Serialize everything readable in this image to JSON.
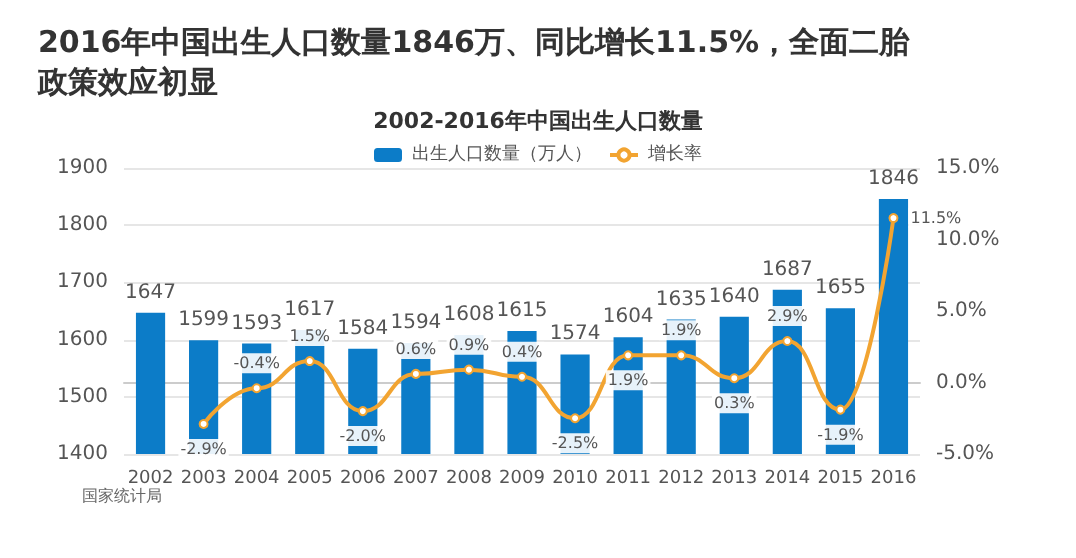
{
  "chart_data": {
    "type": "bar",
    "title": "2016年中国出生人口数量1846万、同比增长11.5%，全面二胎政策效应初显",
    "subtitle": "2002-2016年中国出生人口数量",
    "annotations": [
      "国家统计局"
    ],
    "categories": [
      "2002",
      "2003",
      "2004",
      "2005",
      "2006",
      "2007",
      "2008",
      "2009",
      "2010",
      "2011",
      "2012",
      "2013",
      "2014",
      "2015",
      "2016"
    ],
    "series": [
      {
        "name": "出生人口数量（万人）",
        "color": "#0c7cc8",
        "values": [
          1647,
          1599,
          1593,
          1617,
          1584,
          1594,
          1608,
          1615,
          1574,
          1604,
          1635,
          1640,
          1687,
          1655,
          1846
        ]
      },
      {
        "name": "增长率",
        "type": "line",
        "axis": "y2",
        "color": "#f2a431",
        "values": [
          null,
          -2.9,
          -0.4,
          1.5,
          -2.0,
          0.6,
          0.9,
          0.4,
          -2.5,
          1.9,
          1.9,
          0.3,
          2.9,
          -1.9,
          11.5
        ],
        "value_labels": [
          null,
          "-2.9%",
          "-0.4%",
          "1.5%",
          "-2.0%",
          "0.6%",
          "0.9%",
          "0.4%",
          "-2.5%",
          "1.9%",
          "1.9%",
          "0.3%",
          "2.9%",
          "-1.9%",
          "11.5%"
        ]
      }
    ],
    "data_labels": true,
    "ylim": [
      1400,
      1900
    ],
    "yticks": [
      1400,
      1500,
      1600,
      1700,
      1800,
      1900
    ],
    "y2lim": [
      -5,
      15
    ],
    "y2ticks": [
      {
        "value": -5,
        "label": "-5.0%"
      },
      {
        "value": 0,
        "label": "0.0%"
      },
      {
        "value": 5,
        "label": "5.0%"
      },
      {
        "value": 10,
        "label": "10.0%"
      },
      {
        "value": 15,
        "label": "15.0%"
      }
    ],
    "grid": "y",
    "legend": "top",
    "marker": "circle"
  }
}
